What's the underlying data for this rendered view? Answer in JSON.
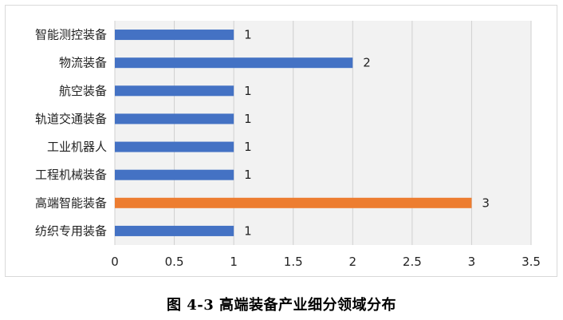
{
  "caption": "图 4-3  高端装备产业细分领域分布",
  "colors": {
    "default_bar": "#4472c4",
    "highlight_bar": "#ed7d31",
    "plot_background": "#f2f2f2",
    "gridline": "#d0d0d0"
  },
  "chart_data": {
    "type": "bar",
    "orientation": "horizontal",
    "title": "",
    "xlabel": "",
    "ylabel": "",
    "categories": [
      "智能测控装备",
      "物流装备",
      "航空装备",
      "轨道交通装备",
      "工业机器人",
      "工程机械装备",
      "高端智能装备",
      "纺织专用装备"
    ],
    "values": [
      1,
      2,
      1,
      1,
      1,
      1,
      3,
      1
    ],
    "highlight_index": 6,
    "xlim": [
      0,
      3.5
    ],
    "xticks": [
      0,
      0.5,
      1,
      1.5,
      2,
      2.5,
      3,
      3.5
    ],
    "xtick_labels": [
      "0",
      "0.5",
      "1",
      "1.5",
      "2",
      "2.5",
      "3",
      "3.5"
    ],
    "data_labels": [
      "1",
      "2",
      "1",
      "1",
      "1",
      "1",
      "3",
      "1"
    ],
    "grid": "vertical",
    "legend": "none"
  }
}
